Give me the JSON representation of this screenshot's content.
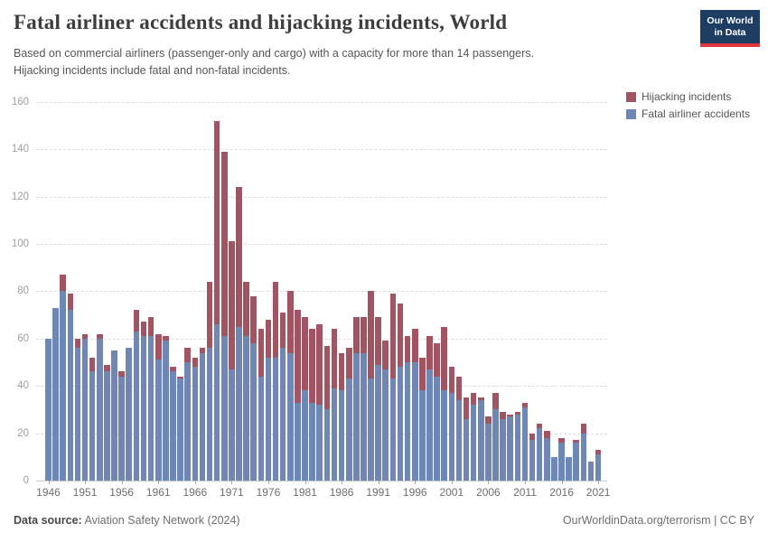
{
  "header": {
    "title": "Fatal airliner accidents and hijacking incidents, World",
    "subtitle_line1": "Based on commercial airliners (passenger-only and cargo) with a capacity for more than 14 passengers.",
    "subtitle_line2": "Hijacking incidents include fatal and non-fatal incidents.",
    "logo_line1": "Our World",
    "logo_line2": "in Data",
    "logo_bg": "#1d3d63",
    "logo_stripe": "#e0373e"
  },
  "legend": [
    {
      "label": "Hijacking incidents",
      "color": "#a15562"
    },
    {
      "label": "Fatal airliner accidents",
      "color": "#6e87b4"
    }
  ],
  "footer": {
    "source_label": "Data source:",
    "source_value": " Aviation Safety Network (2024)",
    "right": "OurWorldinData.org/terrorism | CC BY"
  },
  "chart_data": {
    "type": "bar",
    "stacked": true,
    "title": "Fatal airliner accidents and hijacking incidents, World",
    "xlabel": "",
    "ylabel": "",
    "ylim": [
      0,
      160
    ],
    "yticks": [
      0,
      20,
      40,
      60,
      80,
      100,
      120,
      140,
      160
    ],
    "xticks": [
      1946,
      1951,
      1956,
      1961,
      1966,
      1971,
      1976,
      1981,
      1986,
      1991,
      1996,
      2001,
      2006,
      2011,
      2016,
      2021
    ],
    "grid": "dashed-horizontal",
    "legend_position": "top-right",
    "years": [
      1946,
      1947,
      1948,
      1949,
      1950,
      1951,
      1952,
      1953,
      1954,
      1955,
      1956,
      1957,
      1958,
      1959,
      1960,
      1961,
      1962,
      1963,
      1964,
      1965,
      1966,
      1967,
      1968,
      1969,
      1970,
      1971,
      1972,
      1973,
      1974,
      1975,
      1976,
      1977,
      1978,
      1979,
      1980,
      1981,
      1982,
      1983,
      1984,
      1985,
      1986,
      1987,
      1988,
      1989,
      1990,
      1991,
      1992,
      1993,
      1994,
      1995,
      1996,
      1997,
      1998,
      1999,
      2000,
      2001,
      2002,
      2003,
      2004,
      2005,
      2006,
      2007,
      2008,
      2009,
      2010,
      2011,
      2012,
      2013,
      2014,
      2015,
      2016,
      2017,
      2018,
      2019,
      2020,
      2021
    ],
    "series": [
      {
        "name": "Fatal airliner accidents",
        "color": "#6e87b4",
        "values": [
          60,
          73,
          80,
          72,
          56,
          60,
          46,
          60,
          46,
          55,
          44,
          56,
          63,
          61,
          61,
          51,
          59,
          46,
          43,
          50,
          48,
          54,
          56,
          66,
          61,
          47,
          65,
          61,
          58,
          44,
          52,
          52,
          56,
          54,
          33,
          38,
          33,
          32,
          30,
          39,
          38,
          43,
          54,
          54,
          43,
          49,
          47,
          43,
          48,
          50,
          50,
          38,
          47,
          44,
          38,
          37,
          34,
          26,
          32,
          34,
          24,
          30,
          26,
          27,
          28,
          31,
          17,
          22,
          18,
          10,
          16,
          10,
          16,
          20,
          8,
          11
        ]
      },
      {
        "name": "Hijacking incidents",
        "color": "#a15562",
        "values": [
          0,
          0,
          7,
          7,
          4,
          2,
          6,
          2,
          3,
          0,
          2,
          0,
          9,
          6,
          8,
          11,
          2,
          2,
          1,
          6,
          4,
          2,
          28,
          86,
          78,
          54,
          59,
          23,
          20,
          20,
          16,
          32,
          15,
          26,
          39,
          31,
          31,
          34,
          27,
          25,
          16,
          13,
          15,
          15,
          37,
          20,
          12,
          36,
          27,
          11,
          14,
          14,
          14,
          14,
          27,
          11,
          10,
          9,
          5,
          1,
          3,
          7,
          3,
          1,
          1,
          2,
          3,
          2,
          3,
          0,
          2,
          0,
          1,
          4,
          0,
          2
        ]
      }
    ]
  }
}
